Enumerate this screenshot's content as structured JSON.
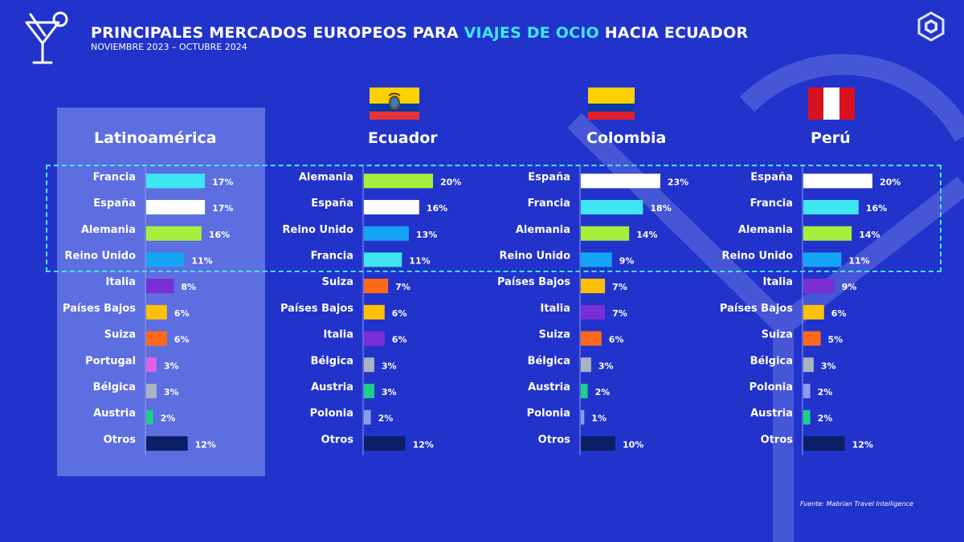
{
  "header": {
    "title_before": "PRINCIPALES MERCADOS EUROPEOS PARA ",
    "title_highlight": "VIAJES DE OCIO",
    "title_after": " HACIA ECUADOR",
    "subtitle": "NOVIEMBRE 2023 – OCTUBRE 2024"
  },
  "source": "Fuente: Mabrian Travel Intelligence",
  "icons": {
    "left": "cocktail-glass-icon",
    "right": "brand-logo-icon"
  },
  "colors": {
    "background": "#2233cc",
    "panel": "#5d6ee0",
    "highlight": "#3ee6f2",
    "markets": {
      "Francia": "#3ee6f2",
      "España": "#ffffff",
      "Alemania": "#a6f03d",
      "Reino Unido": "#14a6f5",
      "Italia": "#7a2ed6",
      "Países Bajos": "#ffc107",
      "Suiza": "#ff6a1a",
      "Portugal": "#e060e8",
      "Bélgica": "#aab2c5",
      "Austria": "#1ad08a",
      "Polonia": "#8b9cf0",
      "Otros": "#0c1f66"
    }
  },
  "chart_data": [
    {
      "type": "bar",
      "title": "Latinoamérica",
      "categories": [
        "Francia",
        "España",
        "Alemania",
        "Reino Unido",
        "Italia",
        "Países Bajos",
        "Suiza",
        "Portugal",
        "Bélgica",
        "Austria",
        "Otros"
      ],
      "values": [
        17,
        17,
        16,
        11,
        8,
        6,
        6,
        3,
        3,
        2,
        12
      ],
      "value_suffix": "%"
    },
    {
      "type": "bar",
      "title": "Ecuador",
      "flag": "ecuador-flag-icon",
      "categories": [
        "Alemania",
        "España",
        "Reino Unido",
        "Francia",
        "Suiza",
        "Países Bajos",
        "Italia",
        "Bélgica",
        "Austria",
        "Polonia",
        "Otros"
      ],
      "values": [
        20,
        16,
        13,
        11,
        7,
        6,
        6,
        3,
        3,
        2,
        12
      ],
      "value_suffix": "%"
    },
    {
      "type": "bar",
      "title": "Colombia",
      "flag": "colombia-flag-icon",
      "categories": [
        "España",
        "Francia",
        "Alemania",
        "Reino Unido",
        "Países Bajos",
        "Italia",
        "Suiza",
        "Bélgica",
        "Austria",
        "Polonia",
        "Otros"
      ],
      "values": [
        23,
        18,
        14,
        9,
        7,
        7,
        6,
        3,
        2,
        1,
        10
      ],
      "value_suffix": "%"
    },
    {
      "type": "bar",
      "title": "Perú",
      "flag": "peru-flag-icon",
      "categories": [
        "España",
        "Francia",
        "Alemania",
        "Reino Unido",
        "Italia",
        "Países Bajos",
        "Suiza",
        "Bélgica",
        "Polonia",
        "Austria",
        "Otros"
      ],
      "values": [
        20,
        16,
        14,
        11,
        9,
        6,
        5,
        3,
        2,
        2,
        12
      ],
      "value_suffix": "%"
    }
  ]
}
